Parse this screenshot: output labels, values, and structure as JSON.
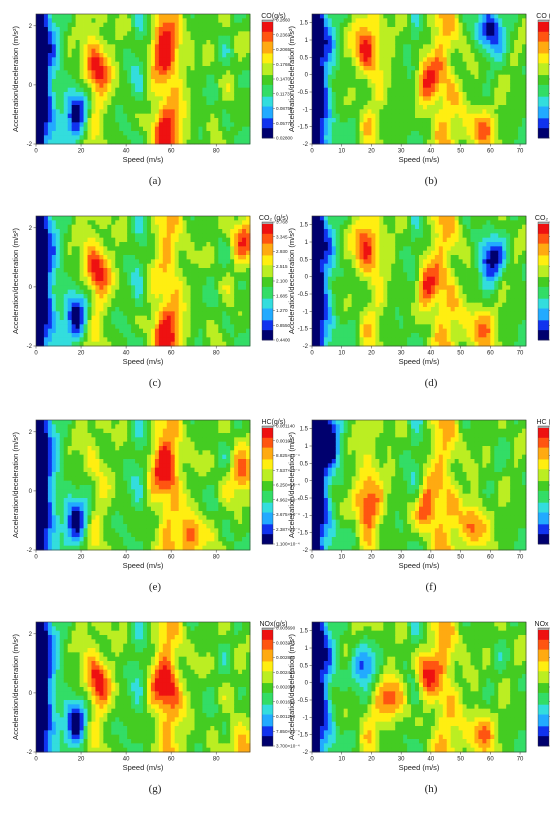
{
  "chart_data": [
    {
      "type": "heatmap",
      "panel": "(a)",
      "title": "CO(g/s)",
      "xlabel": "Speed (m/s)",
      "ylabel": "Acceleration/deceleration (m/s²)",
      "xlim": [
        0,
        95
      ],
      "ylim": [
        -2,
        2.4
      ],
      "x_ticks": [
        "0",
        "20",
        "40",
        "60",
        "80"
      ],
      "y_ticks": [
        "-2",
        "0",
        "2"
      ],
      "colorbar_ticks": [
        "0.2660",
        "0.2363",
        "0.2065",
        "0.1768",
        "0.1470",
        "0.1173",
        "0.08750",
        "0.05775",
        "0.02800"
      ],
      "peaks": [
        [
          57,
          -1.6,
          0.26
        ],
        [
          57,
          1.2,
          0.22
        ],
        [
          27,
          0.5,
          0.17
        ],
        [
          18,
          -0.9,
          0.04
        ]
      ]
    },
    {
      "type": "heatmap",
      "panel": "(b)",
      "title": "CO (g/s)",
      "xlabel": "Speed (m/s)",
      "ylabel": "Acceleration/deceleration (m/s²)",
      "xlim": [
        0,
        72
      ],
      "ylim": [
        -2,
        1.75
      ],
      "x_ticks": [
        "0",
        "10",
        "20",
        "30",
        "40",
        "50",
        "60",
        "70"
      ],
      "y_ticks": [
        "-2",
        "-1.5",
        "-1",
        "-0.5",
        "0",
        "0.5",
        "1",
        "1.5"
      ],
      "colorbar_ticks": [
        "0.1290",
        "0.1161",
        "0.1033",
        "0.09038",
        "0.07750",
        "0.06463",
        "0.05175",
        "0.03888",
        "0.02600"
      ],
      "peaks": [
        [
          38,
          -0.2,
          0.125
        ],
        [
          18,
          0.8,
          0.11
        ],
        [
          57,
          -1.6,
          0.11
        ],
        [
          60,
          1.3,
          0.1
        ]
      ]
    },
    {
      "type": "heatmap",
      "panel": "(c)",
      "title": "CO₂ (g/s)",
      "xlabel": "Speed (m/s)",
      "ylabel": "Acceleration/deceleration (m/s²)",
      "xlim": [
        0,
        95
      ],
      "ylim": [
        -2,
        2.4
      ],
      "x_ticks": [
        "0",
        "20",
        "40",
        "60",
        "80"
      ],
      "y_ticks": [
        "-2",
        "0",
        "2"
      ],
      "colorbar_ticks": [
        "3.760",
        "3.345",
        "2.930",
        "2.515",
        "2.100",
        "1.685",
        "1.270",
        "0.8550",
        "0.4400"
      ],
      "peaks": [
        [
          57,
          -1.6,
          3.6
        ],
        [
          92,
          1.6,
          3.4
        ],
        [
          27,
          0.5,
          2.8
        ],
        [
          18,
          -0.9,
          0.6
        ]
      ]
    },
    {
      "type": "heatmap",
      "panel": "(d)",
      "title": "CO₂ (g/s)",
      "xlabel": "Speed (m/s)",
      "ylabel": "Acceleration/deceleration (m/s²)",
      "xlim": [
        0,
        72
      ],
      "ylim": [
        -2,
        1.75
      ],
      "x_ticks": [
        "0",
        "10",
        "20",
        "30",
        "40",
        "50",
        "60",
        "70"
      ],
      "y_ticks": [
        "-2",
        "-1.5",
        "-1",
        "-0.5",
        "0",
        "0.5",
        "1",
        "1.5"
      ],
      "colorbar_ticks": [
        "2.225",
        "2.002",
        "1.780",
        "1.558",
        "1.335",
        "1.113",
        "0.8900",
        "0.6675",
        "0.4450"
      ],
      "peaks": [
        [
          38,
          -0.3,
          2.2
        ],
        [
          57,
          -1.5,
          2.0
        ],
        [
          18,
          0.9,
          2.0
        ],
        [
          60,
          0.5,
          1.9
        ]
      ]
    },
    {
      "type": "heatmap",
      "panel": "(e)",
      "title": "HC(g/s)",
      "xlabel": "Speed (m/s)",
      "ylabel": "Acceleration/deceleration (m/s²)",
      "xlim": [
        0,
        95
      ],
      "ylim": [
        -2,
        2.4
      ],
      "x_ticks": [
        "0",
        "20",
        "40",
        "60",
        "80"
      ],
      "y_ticks": [
        "-2",
        "0",
        "2"
      ],
      "colorbar_ticks": [
        "0.001140",
        "0.001011",
        "8.825×10⁻⁴",
        "7.537×10⁻⁴",
        "6.250×10⁻⁴",
        "4.962×10⁻⁴",
        "3.675×10⁻⁴",
        "2.387×10⁻⁴",
        "1.100×10⁻⁴"
      ],
      "peaks": [
        [
          57,
          0.8,
          0.00105
        ],
        [
          92,
          0.6,
          0.0009
        ],
        [
          70,
          -1.6,
          0.0009
        ],
        [
          18,
          -0.9,
          0.0002
        ]
      ]
    },
    {
      "type": "heatmap",
      "panel": "(f)",
      "title": "HC (g/s)",
      "xlabel": "Speed (m/s)",
      "ylabel": "Acceleration/deceleration (m/s²)",
      "xlim": [
        0,
        72
      ],
      "ylim": [
        -2,
        1.75
      ],
      "x_ticks": [
        "0",
        "10",
        "20",
        "30",
        "40",
        "50",
        "60",
        "70"
      ],
      "y_ticks": [
        "-2",
        "-1.5",
        "-1",
        "-0.5",
        "0",
        "0.5",
        "1",
        "1.5"
      ],
      "colorbar_ticks": [
        "6.240×10⁻⁴",
        "5.535×10⁻⁴",
        "4.830×10⁻⁴",
        "4.125×10⁻⁴",
        "3.420×10⁻⁴",
        "2.715×10⁻⁴",
        "2.010×10⁻⁴",
        "1.305×10⁻⁴",
        "6.000×10⁻⁵"
      ],
      "peaks": [
        [
          18,
          -0.6,
          0.00055
        ],
        [
          38,
          -0.8,
          0.0005
        ],
        [
          55,
          -1.3,
          0.00045
        ],
        [
          5,
          1.2,
          0.0001
        ]
      ]
    },
    {
      "type": "heatmap",
      "panel": "(g)",
      "title": "NOx(g/s)",
      "xlabel": "Speed (m/s)",
      "ylabel": "Acceleration/deceleration (m/s²)",
      "xlim": [
        0,
        95
      ],
      "ylim": [
        -2,
        2.4
      ],
      "x_ticks": [
        "0",
        "20",
        "40",
        "60",
        "80"
      ],
      "y_ticks": [
        "-2",
        "0",
        "2"
      ],
      "colorbar_ticks": [
        "0.003690",
        "0.003275",
        "0.002860",
        "0.002445",
        "0.002030",
        "0.001615",
        "0.001200",
        "7.850×10⁻⁴",
        "3.700×10⁻⁴"
      ],
      "peaks": [
        [
          92,
          -1.9,
          0.0036
        ],
        [
          57,
          0.2,
          0.0025
        ],
        [
          27,
          0.3,
          0.0022
        ],
        [
          18,
          -0.9,
          0.0006
        ]
      ]
    },
    {
      "type": "heatmap",
      "panel": "(h)",
      "title": "NOx (g/s)",
      "xlabel": "Speed (m/s)",
      "ylabel": "Acceleration/deceleration (m/s²)",
      "xlim": [
        0,
        72
      ],
      "ylim": [
        -2,
        1.75
      ],
      "x_ticks": [
        "0",
        "10",
        "20",
        "30",
        "40",
        "50",
        "60",
        "70"
      ],
      "y_ticks": [
        "-2",
        "-1.5",
        "-1",
        "-0.5",
        "0",
        "0.5",
        "1",
        "1.5"
      ],
      "colorbar_ticks": [
        "0.001960",
        "0.001754",
        "0.001549",
        "0.001343",
        "0.001137",
        "9.319×10⁻⁴",
        "7.262×10⁻⁴",
        "5.206×10⁻⁴",
        "3.150×10⁻⁴"
      ],
      "peaks": [
        [
          38,
          0.3,
          0.0019
        ],
        [
          57,
          -1.5,
          0.0019
        ],
        [
          27,
          -0.5,
          0.0017
        ],
        [
          18,
          0.5,
          0.0016
        ]
      ]
    }
  ],
  "colormap": [
    "#00006e",
    "#1133ee",
    "#22aaff",
    "#33dddd",
    "#33dd66",
    "#44cc22",
    "#bbee22",
    "#ffee11",
    "#ffaa11",
    "#ff5511",
    "#ee1111",
    "#aaaaaa"
  ],
  "colors": {
    "contour": "#222222",
    "axis": "#333333"
  }
}
